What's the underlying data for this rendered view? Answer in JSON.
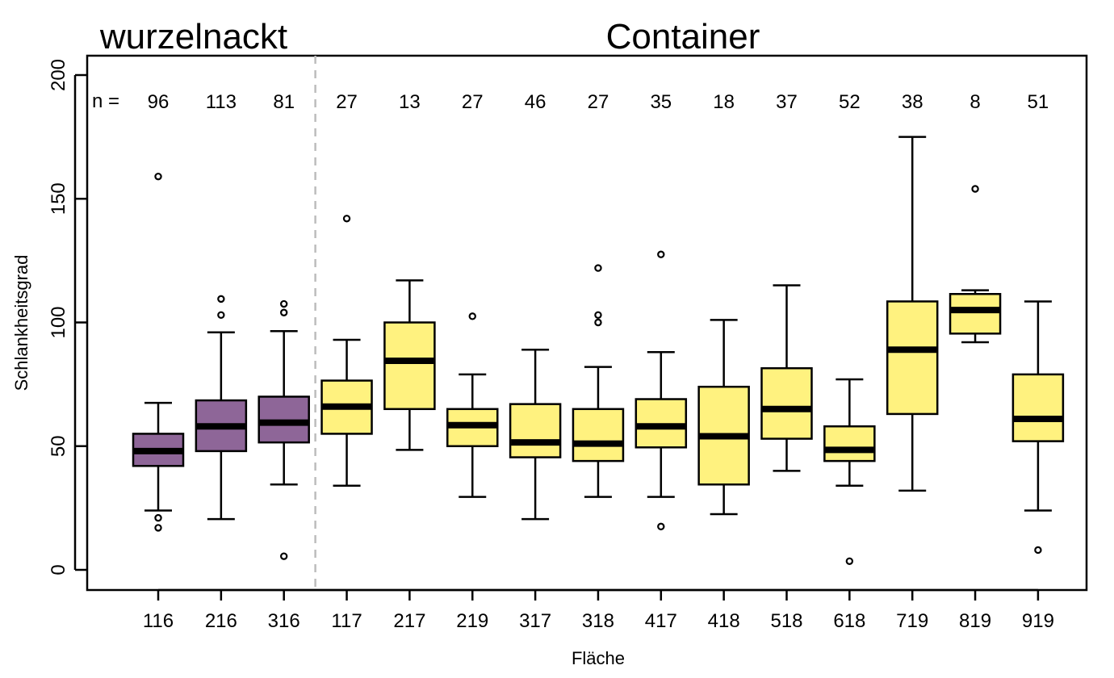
{
  "chart_data": {
    "type": "box",
    "title": "",
    "xlabel": "Fläche",
    "ylabel": "Schlankheitsgrad",
    "ylim": [
      -8,
      208
    ],
    "yticks": [
      0,
      50,
      100,
      150,
      200
    ],
    "grid": false,
    "n_prefix": "n =",
    "groups": [
      {
        "name": "wurzelnackt",
        "color": "#8E6698"
      },
      {
        "name": "Container",
        "color": "#FFF27F"
      }
    ],
    "colors": {
      "wurzelnackt": "#8E6698",
      "Container": "#FFF27F",
      "divider": "#BDBDBD",
      "stroke": "#000000"
    },
    "boxes": [
      {
        "label": "116",
        "group": "wurzelnackt",
        "n": "96",
        "whisker_low": 24,
        "q1": 42,
        "median": 48,
        "q3": 55,
        "whisker_high": 67.5,
        "outliers": [
          17,
          21,
          159
        ]
      },
      {
        "label": "216",
        "group": "wurzelnackt",
        "n": "113",
        "whisker_low": 20.5,
        "q1": 48,
        "median": 58,
        "q3": 68.5,
        "whisker_high": 96,
        "outliers": [
          103,
          109.5
        ]
      },
      {
        "label": "316",
        "group": "wurzelnackt",
        "n": "81",
        "whisker_low": 34.5,
        "q1": 51.5,
        "median": 59.5,
        "q3": 70,
        "whisker_high": 96.5,
        "outliers": [
          5.5,
          104,
          107.5
        ]
      },
      {
        "label": "117",
        "group": "Container",
        "n": "27",
        "whisker_low": 34,
        "q1": 55,
        "median": 66,
        "q3": 76.5,
        "whisker_high": 93,
        "outliers": [
          142
        ]
      },
      {
        "label": "217",
        "group": "Container",
        "n": "13",
        "whisker_low": 48.5,
        "q1": 65,
        "median": 84.5,
        "q3": 100,
        "whisker_high": 117,
        "outliers": []
      },
      {
        "label": "219",
        "group": "Container",
        "n": "27",
        "whisker_low": 29.5,
        "q1": 50,
        "median": 58.5,
        "q3": 65,
        "whisker_high": 79,
        "outliers": [
          102.5
        ]
      },
      {
        "label": "317",
        "group": "Container",
        "n": "46",
        "whisker_low": 20.5,
        "q1": 45.5,
        "median": 51.5,
        "q3": 67,
        "whisker_high": 89,
        "outliers": []
      },
      {
        "label": "318",
        "group": "Container",
        "n": "27",
        "whisker_low": 29.5,
        "q1": 44,
        "median": 51,
        "q3": 65,
        "whisker_high": 82,
        "outliers": [
          100,
          103,
          122
        ]
      },
      {
        "label": "417",
        "group": "Container",
        "n": "35",
        "whisker_low": 29.5,
        "q1": 49.5,
        "median": 58,
        "q3": 69,
        "whisker_high": 88,
        "outliers": [
          17.5,
          127.5
        ]
      },
      {
        "label": "418",
        "group": "Container",
        "n": "18",
        "whisker_low": 22.5,
        "q1": 34.5,
        "median": 54,
        "q3": 74,
        "whisker_high": 101,
        "outliers": []
      },
      {
        "label": "518",
        "group": "Container",
        "n": "37",
        "whisker_low": 40,
        "q1": 53,
        "median": 65,
        "q3": 81.5,
        "whisker_high": 115,
        "outliers": []
      },
      {
        "label": "618",
        "group": "Container",
        "n": "52",
        "whisker_low": 34,
        "q1": 44,
        "median": 48.5,
        "q3": 58,
        "whisker_high": 77,
        "outliers": [
          3.5
        ]
      },
      {
        "label": "719",
        "group": "Container",
        "n": "38",
        "whisker_low": 32,
        "q1": 63,
        "median": 89,
        "q3": 108.5,
        "whisker_high": 175,
        "outliers": []
      },
      {
        "label": "819",
        "group": "Container",
        "n": "8",
        "whisker_low": 92,
        "q1": 95.5,
        "median": 105,
        "q3": 111.5,
        "whisker_high": 113,
        "outliers": [
          154
        ]
      },
      {
        "label": "919",
        "group": "Container",
        "n": "51",
        "whisker_low": 24,
        "q1": 52,
        "median": 61,
        "q3": 79,
        "whisker_high": 108.5,
        "outliers": [
          8
        ]
      }
    ]
  }
}
